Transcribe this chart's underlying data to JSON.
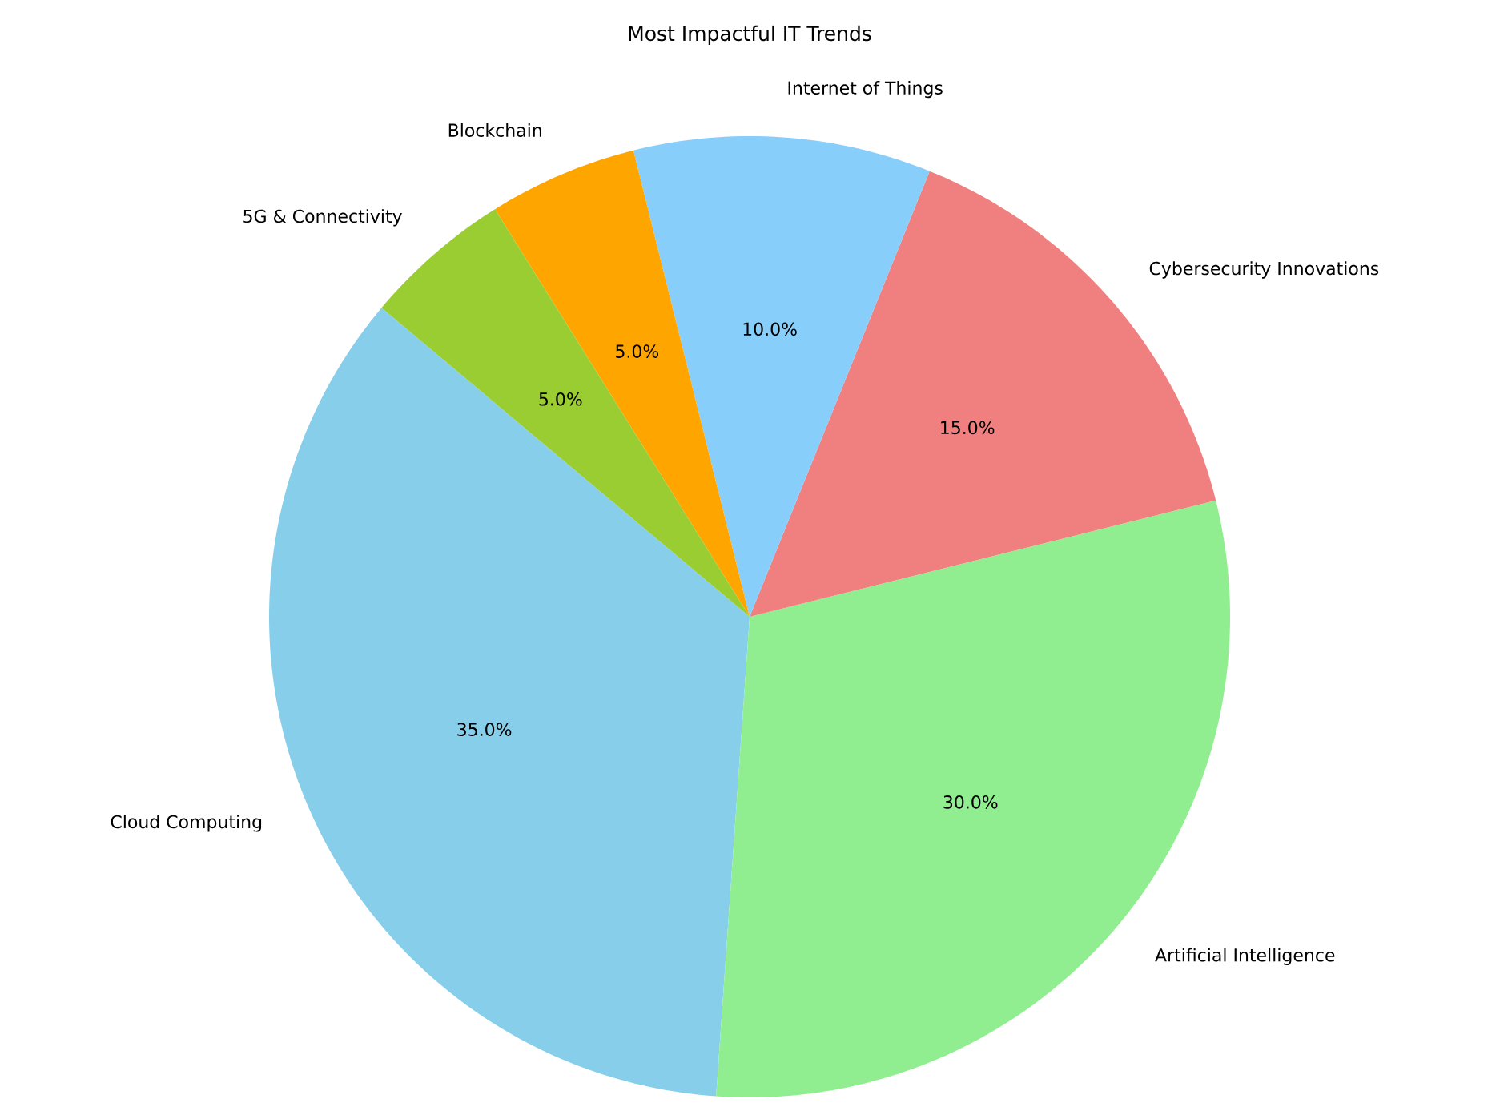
{
  "chart_data": {
    "type": "pie",
    "title": "Most Impactful IT Trends",
    "categories": [
      "Cloud Computing",
      "Artificial Intelligence",
      "Cybersecurity Innovations",
      "Internet of Things",
      "Blockchain",
      "5G & Connectivity"
    ],
    "values": [
      35,
      30,
      15,
      10,
      5,
      5
    ],
    "colors": [
      "#87ceeb",
      "#90ee90",
      "#f08080",
      "#87cefa",
      "#ffa500",
      "#9acd32"
    ],
    "value_labels": [
      "35.0%",
      "30.0%",
      "15.0%",
      "10.0%",
      "5.0%",
      "5.0%"
    ]
  }
}
